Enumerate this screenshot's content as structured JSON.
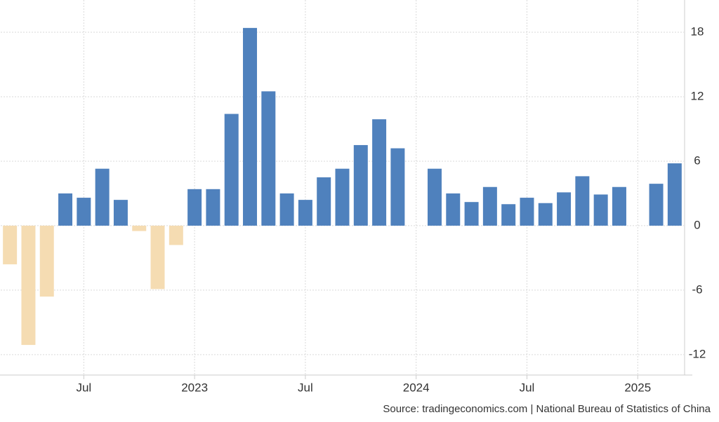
{
  "chart_data": {
    "type": "bar",
    "categories": [
      null,
      null,
      null,
      null,
      "Jul",
      null,
      null,
      null,
      null,
      null,
      "2023",
      null,
      null,
      null,
      null,
      null,
      "Jul",
      null,
      null,
      null,
      null,
      null,
      "2024",
      null,
      null,
      null,
      null,
      null,
      "Jul",
      null,
      null,
      null,
      null,
      null,
      "2025",
      null,
      null
    ],
    "values": [
      -3.6,
      -11.1,
      -6.6,
      3.0,
      2.6,
      5.3,
      2.4,
      -0.5,
      -5.9,
      -1.8,
      3.4,
      3.4,
      10.4,
      18.4,
      12.5,
      3.0,
      2.4,
      4.5,
      5.3,
      7.5,
      9.9,
      7.2,
      null,
      5.3,
      3.0,
      2.2,
      3.6,
      2.0,
      2.6,
      2.1,
      3.1,
      4.6,
      2.9,
      3.6,
      null,
      3.9,
      5.8
    ],
    "color": "#4f81bd",
    "negative_color": "#f5dcb2",
    "ylim": [
      -13.9,
      21
    ],
    "yticks": [
      -12,
      -6,
      0,
      6,
      12,
      18
    ],
    "grid": true,
    "source": "Source: tradingeconomics.com | National Bureau of Statistics of China"
  }
}
